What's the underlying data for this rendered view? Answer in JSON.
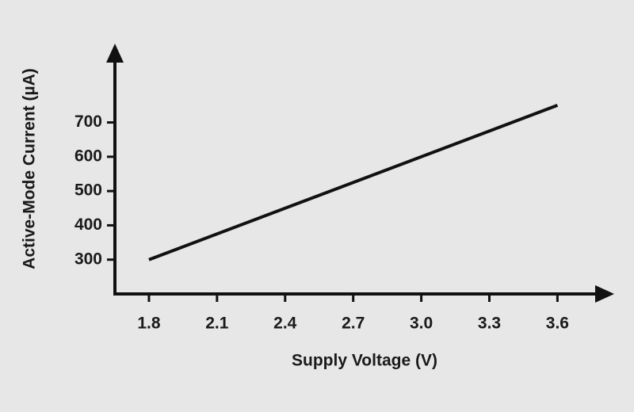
{
  "chart_data": {
    "type": "line",
    "xlabel": "Supply Voltage (V)",
    "ylabel": "Active-Mode Current (µA)",
    "x": [
      1.8,
      3.6
    ],
    "series": [
      {
        "color": "#111111",
        "values": [
          300,
          750
        ]
      }
    ],
    "xlim": [
      1.65,
      3.85
    ],
    "ylim": [
      200,
      930
    ],
    "xticks": [
      1.8,
      2.1,
      2.4,
      2.7,
      {
        "value": 3,
        "label": "3.0"
      },
      3.3,
      3.6
    ],
    "yticks": [
      300,
      400,
      500,
      600,
      700
    ]
  }
}
